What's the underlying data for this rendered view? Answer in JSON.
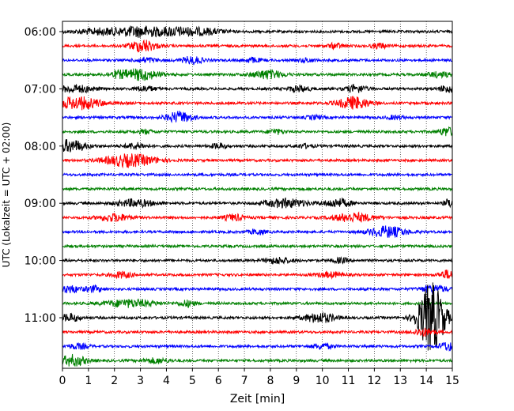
{
  "chart_data": {
    "type": "line",
    "title": "",
    "xlabel": "Zeit  [min]",
    "ylabel": "UTC (Lokalzeit = UTC + 02:00)",
    "xlim": [
      0,
      15
    ],
    "x_ticks": [
      "0",
      "1",
      "2",
      "3",
      "4",
      "5",
      "6",
      "7",
      "8",
      "9",
      "10",
      "11",
      "12",
      "13",
      "14",
      "15"
    ],
    "y_tick_labels": [
      "06:00",
      "07:00",
      "08:00",
      "09:00",
      "10:00",
      "11:00"
    ],
    "y_tick_rows": [
      0,
      4,
      8,
      12,
      16,
      20
    ],
    "grid": "vertical dotted",
    "row_colors": [
      "#000000",
      "#ff0000",
      "#0000ff",
      "#008000"
    ],
    "rows": [
      {
        "time": "06:00",
        "events": [
          [
            1.5,
            0.5,
            1.0
          ],
          [
            3.0,
            0.8,
            0.8
          ],
          [
            4.3,
            0.6,
            0.7
          ],
          [
            5.4,
            0.5,
            0.8
          ]
        ]
      },
      {
        "time": "06:15",
        "events": [
          [
            3.1,
            1.0,
            0.5
          ],
          [
            10.5,
            0.4,
            0.3
          ],
          [
            12.2,
            0.4,
            0.3
          ]
        ]
      },
      {
        "time": "06:30",
        "events": [
          [
            3.2,
            0.4,
            0.4
          ],
          [
            5.0,
            0.6,
            0.4
          ],
          [
            7.3,
            0.4,
            0.3
          ],
          [
            9.4,
            0.3,
            0.3
          ]
        ]
      },
      {
        "time": "06:45",
        "events": [
          [
            2.1,
            0.4,
            0.4
          ],
          [
            3.0,
            0.9,
            0.7
          ],
          [
            7.9,
            0.7,
            0.6
          ],
          [
            14.5,
            0.4,
            0.5
          ]
        ]
      },
      {
        "time": "07:00",
        "events": [
          [
            0.5,
            0.6,
            0.7
          ],
          [
            3.2,
            0.4,
            0.4
          ],
          [
            9.1,
            0.5,
            0.4
          ],
          [
            11.3,
            0.6,
            0.4
          ],
          [
            14.8,
            0.6,
            0.3
          ]
        ]
      },
      {
        "time": "07:15",
        "events": [
          [
            0.6,
            1.0,
            0.9
          ],
          [
            11.2,
            1.0,
            0.6
          ]
        ]
      },
      {
        "time": "07:30",
        "events": [
          [
            4.5,
            0.9,
            0.5
          ],
          [
            9.7,
            0.3,
            0.3
          ],
          [
            12.8,
            0.3,
            0.3
          ]
        ]
      },
      {
        "time": "07:45",
        "events": [
          [
            3.2,
            0.3,
            0.3
          ],
          [
            8.2,
            0.4,
            0.3
          ],
          [
            14.8,
            0.7,
            0.3
          ]
        ]
      },
      {
        "time": "08:00",
        "events": [
          [
            0.3,
            1.0,
            0.6
          ],
          [
            2.8,
            0.5,
            0.4
          ],
          [
            6.0,
            0.4,
            0.3
          ],
          [
            9.3,
            0.3,
            0.3
          ]
        ]
      },
      {
        "time": "08:15",
        "events": [
          [
            2.6,
            1.0,
            1.0
          ]
        ]
      },
      {
        "time": "08:30",
        "events": []
      },
      {
        "time": "08:45",
        "events": []
      },
      {
        "time": "09:00",
        "events": [
          [
            2.8,
            0.6,
            0.7
          ],
          [
            8.6,
            0.7,
            0.8
          ],
          [
            10.6,
            0.7,
            0.5
          ],
          [
            14.9,
            0.7,
            0.2
          ]
        ]
      },
      {
        "time": "09:15",
        "events": [
          [
            2.0,
            0.6,
            0.6
          ],
          [
            6.6,
            0.5,
            0.4
          ],
          [
            11.2,
            0.7,
            0.8
          ]
        ]
      },
      {
        "time": "09:30",
        "events": [
          [
            7.5,
            0.4,
            0.3
          ],
          [
            12.5,
            0.9,
            0.7
          ]
        ]
      },
      {
        "time": "09:45",
        "events": []
      },
      {
        "time": "10:00",
        "events": [
          [
            8.3,
            0.5,
            0.5
          ],
          [
            10.7,
            0.4,
            0.3
          ]
        ]
      },
      {
        "time": "10:15",
        "events": [
          [
            2.3,
            0.5,
            0.4
          ],
          [
            10.3,
            0.4,
            0.5
          ],
          [
            14.8,
            0.7,
            0.3
          ]
        ]
      },
      {
        "time": "10:30",
        "events": [
          [
            0.3,
            0.6,
            0.4
          ],
          [
            1.2,
            0.5,
            0.3
          ],
          [
            14.3,
            0.6,
            0.5
          ]
        ]
      },
      {
        "time": "10:45",
        "events": [
          [
            2.6,
            0.6,
            1.0
          ],
          [
            4.8,
            0.5,
            0.3
          ]
        ]
      },
      {
        "time": "11:00",
        "events": [
          [
            0.3,
            0.6,
            0.4
          ],
          [
            9.9,
            0.8,
            0.6
          ],
          [
            14.2,
            6.0,
            0.5
          ]
        ]
      },
      {
        "time": "11:15",
        "events": [
          [
            13.9,
            0.6,
            0.4
          ]
        ]
      },
      {
        "time": "11:30",
        "events": [
          [
            0.6,
            0.4,
            0.4
          ],
          [
            10.0,
            0.4,
            0.4
          ],
          [
            14.8,
            0.7,
            0.3
          ]
        ]
      },
      {
        "time": "11:45",
        "events": [
          [
            0.4,
            0.9,
            0.5
          ],
          [
            3.6,
            0.4,
            0.5
          ]
        ]
      }
    ]
  }
}
